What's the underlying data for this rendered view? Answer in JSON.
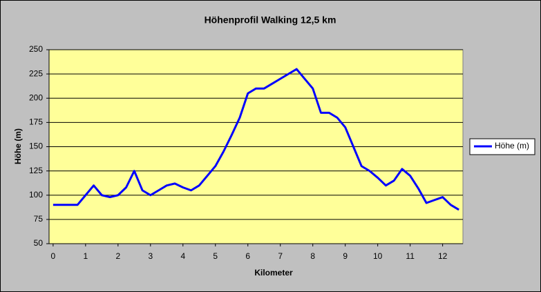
{
  "chart_data": {
    "type": "line",
    "title": "Höhenprofil Walking 12,5 km",
    "x_label": "Kilometer",
    "y_label": "Höhe (m)",
    "x": [
      0,
      0.25,
      0.5,
      0.75,
      1,
      1.25,
      1.5,
      1.75,
      2,
      2.25,
      2.5,
      2.75,
      3,
      3.25,
      3.5,
      3.75,
      4,
      4.25,
      4.5,
      4.75,
      5,
      5.25,
      5.5,
      5.75,
      6,
      6.25,
      6.5,
      6.75,
      7,
      7.25,
      7.5,
      7.75,
      8,
      8.25,
      8.5,
      8.75,
      9,
      9.25,
      9.5,
      9.75,
      10,
      10.25,
      10.5,
      10.75,
      11,
      11.25,
      11.5,
      11.75,
      12,
      12.25,
      12.5
    ],
    "series": [
      {
        "name": "Höhe (m)",
        "color": "#0000ff",
        "values": [
          90,
          90,
          90,
          90,
          100,
          110,
          100,
          98,
          100,
          108,
          125,
          105,
          100,
          105,
          110,
          112,
          108,
          105,
          110,
          120,
          130,
          145,
          162,
          180,
          205,
          210,
          210,
          215,
          220,
          225,
          230,
          220,
          210,
          185,
          185,
          180,
          170,
          150,
          130,
          125,
          118,
          110,
          115,
          127,
          120,
          107,
          92,
          95,
          98,
          90,
          85
        ]
      }
    ],
    "xlim": [
      -0.125,
      12.625
    ],
    "xticks": [
      0,
      1,
      2,
      3,
      4,
      5,
      6,
      7,
      8,
      9,
      10,
      11,
      12
    ],
    "ylim": [
      50,
      250
    ],
    "yticks": [
      50,
      75,
      100,
      125,
      150,
      175,
      200,
      225,
      250
    ],
    "grid": true,
    "legend": "right"
  }
}
